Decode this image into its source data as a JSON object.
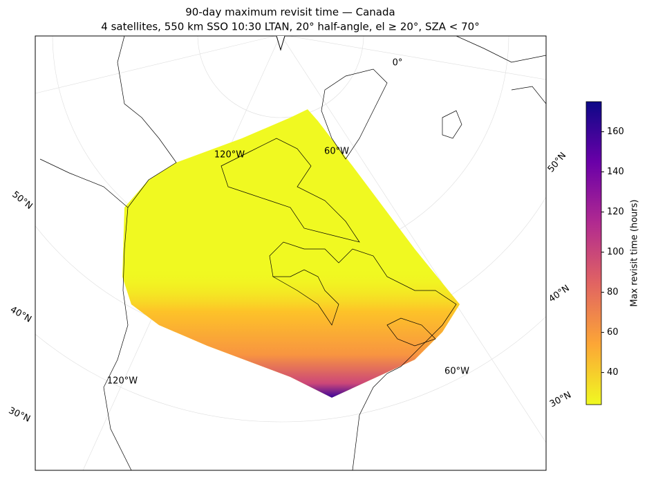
{
  "map": {
    "title": "90-day maximum revisit time — Canada",
    "subtitle": "4 satellites, 550 km SSO 10:30 LTAN, 20° half-angle, el ≥ 20°, SZA < 70°",
    "lon_labels": [
      "0°",
      "120°W",
      "60°W",
      "120°W",
      "60°W"
    ],
    "lat_labels_left": [
      "50°N",
      "40°N",
      "30°N"
    ],
    "lat_labels_right": [
      "50°N",
      "40°N",
      "30°N"
    ],
    "colorbar": {
      "label": "Max revisit time (hours)",
      "colormap": "plasma_r",
      "lim": [
        24,
        175
      ],
      "ticks": [
        40,
        60,
        80,
        100,
        120,
        140,
        160
      ]
    }
  }
}
